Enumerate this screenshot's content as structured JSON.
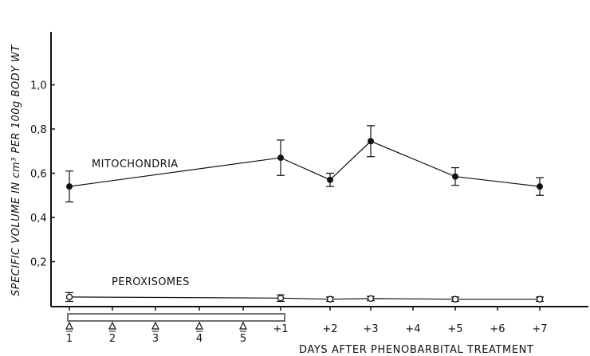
{
  "chart_data": {
    "type": "line",
    "ylabel": "SPECIFIC VOLUME IN cm³ PER 100g BODY WT",
    "xlabel": "DAYS AFTER PHENOBARBITAL TREATMENT",
    "ylim": [
      0,
      1.25
    ],
    "yticks": [
      {
        "value": 0.2,
        "label": "0,2"
      },
      {
        "value": 0.4,
        "label": "0,4"
      },
      {
        "value": 0.6,
        "label": "0,6"
      },
      {
        "value": 0.8,
        "label": "0,8"
      },
      {
        "value": 1.0,
        "label": "1,0"
      }
    ],
    "treatment_ticks": [
      "1",
      "2",
      "3",
      "4",
      "5"
    ],
    "after_ticks": [
      "+1",
      "+2",
      "+3",
      "+4",
      "+5",
      "+6",
      "+7"
    ],
    "series": [
      {
        "name": "MITOCHONDRIA",
        "marker": "filled",
        "points": [
          {
            "x": "1",
            "y": 0.54,
            "err": 0.07
          },
          {
            "x": "+1",
            "y": 0.67,
            "err": 0.08
          },
          {
            "x": "+2",
            "y": 0.57,
            "err": 0.03
          },
          {
            "x": "+3",
            "y": 0.745,
            "err": 0.07
          },
          {
            "x": "+5",
            "y": 0.585,
            "err": 0.04
          },
          {
            "x": "+7",
            "y": 0.54,
            "err": 0.04
          }
        ]
      },
      {
        "name": "PEROXISOMES",
        "marker": "open",
        "points": [
          {
            "x": "1",
            "y": 0.04,
            "err": 0.02
          },
          {
            "x": "+1",
            "y": 0.035,
            "err": 0.015
          },
          {
            "x": "+2",
            "y": 0.03,
            "err": 0.01
          },
          {
            "x": "+3",
            "y": 0.033,
            "err": 0.01
          },
          {
            "x": "+5",
            "y": 0.03,
            "err": 0.01
          },
          {
            "x": "+7",
            "y": 0.03,
            "err": 0.01
          }
        ]
      }
    ]
  }
}
